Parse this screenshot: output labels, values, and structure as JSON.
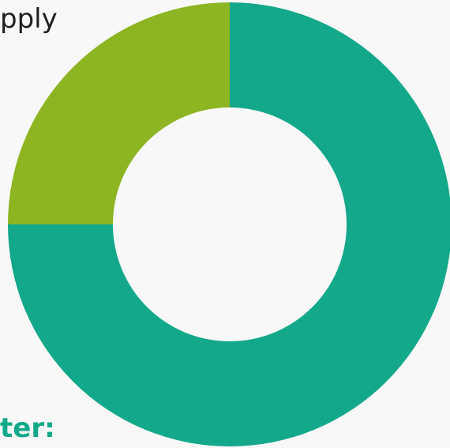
{
  "text_fragments": {
    "top": "pply",
    "bottom": "ter:"
  },
  "chart_data": {
    "type": "pie",
    "variant": "donut",
    "categories": [
      "",
      ""
    ],
    "values": [
      75,
      25
    ],
    "colors": [
      "#12a889",
      "#8db522"
    ],
    "start": "top",
    "direction": "clockwise"
  },
  "colors": {
    "background": "#f8f8f8",
    "accent": "#12a889"
  }
}
